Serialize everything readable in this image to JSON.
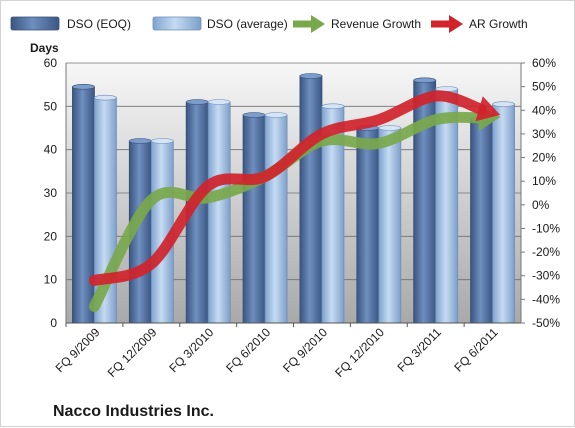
{
  "footer_text": "Nacco Industries Inc.",
  "chart_data": {
    "type": "bar",
    "title": "",
    "ylabel": "Days",
    "ylim": [
      0,
      60
    ],
    "y_ticks": [
      0,
      10,
      20,
      30,
      40,
      50,
      60
    ],
    "y2lim": [
      -50,
      60
    ],
    "y2_ticks": [
      -50,
      -40,
      -30,
      -20,
      -10,
      0,
      10,
      20,
      30,
      40,
      50,
      60
    ],
    "y2_tick_labels": [
      "-50%",
      "-40%",
      "-30%",
      "-20%",
      "-10%",
      "0%",
      "10%",
      "20%",
      "30%",
      "40%",
      "50%",
      "60%"
    ],
    "categories": [
      "FQ 9/2009",
      "FQ 12/2009",
      "FQ 3/2010",
      "FQ 6/2010",
      "FQ 9/2010",
      "FQ 12/2010",
      "FQ 3/2011",
      "FQ 6/2011"
    ],
    "series": [
      {
        "name": "DSO (EOQ)",
        "kind": "bar",
        "axis": "left",
        "color": "#4f6d9a",
        "values": [
          54.5,
          42,
          51,
          48,
          57,
          45,
          56,
          47
        ]
      },
      {
        "name": "DSO (average)",
        "kind": "bar",
        "axis": "left",
        "color": "#9bbbe0",
        "values": [
          52,
          42,
          51,
          48,
          50,
          45,
          54,
          50.5
        ]
      },
      {
        "name": "Revenue Growth",
        "kind": "line",
        "axis": "right",
        "color": "#79a84c",
        "values": [
          -43,
          2,
          3,
          12,
          27,
          26,
          36,
          37
        ]
      },
      {
        "name": "AR Growth",
        "kind": "line",
        "axis": "right",
        "color": "#d0232b",
        "values": [
          -32,
          -25,
          8,
          12,
          30,
          36,
          46,
          39
        ]
      }
    ],
    "legend_position": "top",
    "grid": true
  }
}
